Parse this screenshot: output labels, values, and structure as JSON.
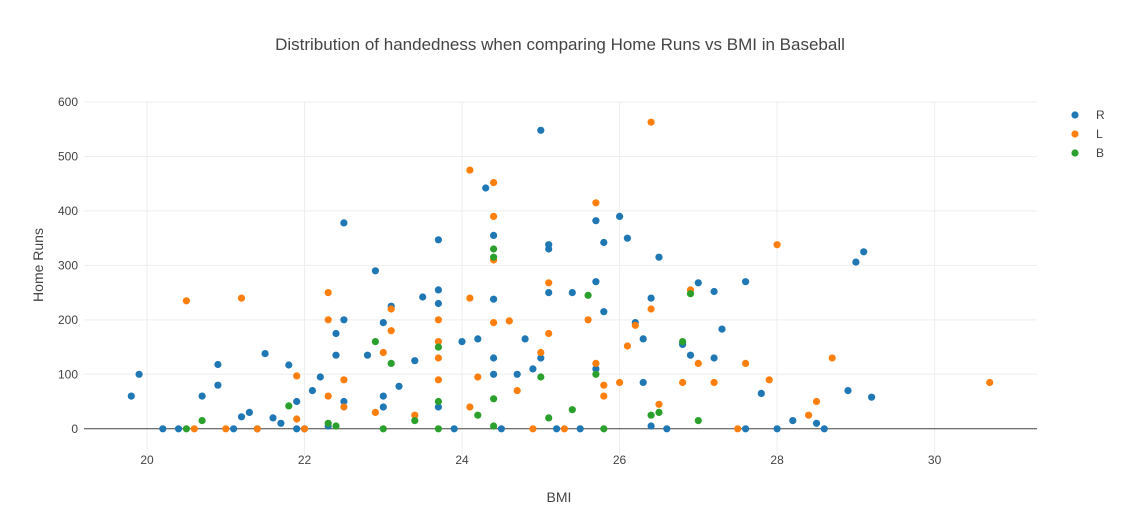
{
  "chart_data": {
    "type": "scatter",
    "title": "Distribution of handedness when comparing Home Runs vs BMI in Baseball",
    "xlabel": "BMI",
    "ylabel": "Home Runs",
    "xlim": [
      19.2,
      31.3
    ],
    "ylim": [
      -50,
      600
    ],
    "xticks": [
      20,
      22,
      24,
      26,
      28,
      30
    ],
    "yticks": [
      0,
      100,
      200,
      300,
      400,
      500,
      600
    ],
    "grid": true,
    "legend_position": "top-right",
    "series": [
      {
        "name": "R",
        "color": "#1f77b4",
        "x": [
          19.8,
          19.9,
          20.2,
          20.4,
          20.7,
          20.9,
          20.9,
          21.1,
          21.2,
          21.3,
          21.4,
          21.5,
          21.6,
          21.7,
          21.8,
          21.9,
          21.9,
          22.0,
          22.2,
          22.3,
          22.4,
          22.5,
          22.5,
          22.5,
          22.4,
          22.8,
          22.9,
          23.0,
          23.0,
          23.1,
          23.2,
          23.4,
          23.5,
          23.7,
          23.7,
          23.7,
          23.9,
          24.0,
          24.2,
          24.3,
          24.4,
          24.4,
          24.4,
          24.5,
          24.7,
          24.8,
          25.0,
          25.1,
          25.1,
          25.1,
          25.2,
          25.4,
          25.5,
          25.7,
          25.7,
          25.8,
          25.8,
          26.0,
          26.1,
          26.2,
          26.3,
          26.4,
          26.4,
          26.5,
          26.6,
          26.8,
          26.9,
          27.0,
          27.2,
          27.2,
          27.3,
          27.6,
          27.6,
          27.8,
          28.0,
          28.2,
          28.5,
          28.6,
          28.9,
          29.0,
          29.1,
          29.2,
          23.0,
          23.7,
          24.4,
          25.0,
          25.7,
          22.1,
          24.9,
          26.3
        ],
        "y": [
          60,
          100,
          0,
          0,
          60,
          118,
          80,
          0,
          22,
          30,
          0,
          138,
          20,
          10,
          117,
          50,
          0,
          0,
          95,
          5,
          135,
          378,
          200,
          50,
          175,
          135,
          290,
          195,
          60,
          225,
          78,
          125,
          242,
          255,
          230,
          347,
          0,
          160,
          165,
          442,
          355,
          238,
          130,
          0,
          100,
          165,
          548,
          338,
          330,
          250,
          0,
          250,
          0,
          382,
          270,
          342,
          215,
          390,
          350,
          195,
          165,
          240,
          5,
          315,
          0,
          155,
          135,
          268,
          252,
          130,
          183,
          0,
          270,
          65,
          0,
          15,
          10,
          0,
          70,
          306,
          325,
          58,
          40,
          40,
          100,
          130,
          110,
          70,
          110,
          85
        ]
      },
      {
        "name": "L",
        "color": "#ff7f0e",
        "x": [
          20.5,
          20.6,
          21.0,
          21.2,
          21.4,
          21.9,
          21.9,
          22.0,
          22.3,
          22.3,
          22.5,
          22.5,
          22.9,
          23.1,
          23.1,
          23.0,
          23.4,
          23.7,
          23.7,
          23.7,
          24.1,
          24.1,
          24.2,
          24.4,
          24.4,
          24.4,
          24.4,
          24.6,
          24.7,
          24.9,
          25.1,
          25.1,
          25.3,
          25.6,
          25.7,
          25.7,
          25.8,
          26.0,
          26.1,
          26.2,
          26.4,
          26.4,
          26.5,
          26.8,
          26.9,
          27.0,
          27.2,
          27.5,
          27.6,
          27.9,
          28.0,
          28.4,
          28.5,
          28.7,
          30.7,
          23.7,
          24.1,
          25.0,
          25.8,
          22.3
        ],
        "y": [
          235,
          0,
          0,
          240,
          0,
          97,
          18,
          0,
          250,
          200,
          90,
          40,
          30,
          220,
          180,
          140,
          25,
          200,
          90,
          130,
          475,
          240,
          95,
          452,
          390,
          310,
          195,
          198,
          70,
          0,
          268,
          175,
          0,
          200,
          415,
          120,
          80,
          85,
          152,
          190,
          563,
          220,
          45,
          85,
          255,
          120,
          85,
          0,
          120,
          90,
          338,
          25,
          50,
          130,
          85,
          160,
          40,
          140,
          60,
          60
        ]
      },
      {
        "name": "B",
        "color": "#2ca02c",
        "x": [
          20.5,
          20.7,
          21.8,
          22.3,
          22.4,
          22.9,
          23.0,
          23.1,
          23.4,
          23.7,
          23.7,
          24.2,
          24.4,
          24.4,
          24.4,
          25.0,
          25.1,
          25.4,
          25.6,
          25.7,
          25.8,
          26.4,
          26.5,
          26.8,
          26.9,
          27.0,
          23.7,
          24.4
        ],
        "y": [
          0,
          15,
          42,
          10,
          5,
          160,
          0,
          120,
          15,
          150,
          50,
          25,
          330,
          315,
          5,
          95,
          20,
          35,
          245,
          100,
          0,
          25,
          30,
          160,
          248,
          15,
          0,
          55
        ]
      }
    ]
  }
}
